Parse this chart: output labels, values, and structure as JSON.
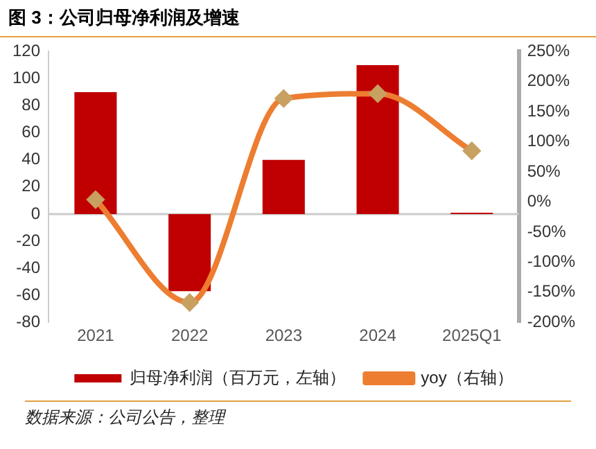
{
  "chart_data": {
    "type": "bar",
    "title": "图 3：公司归母净利润及增速",
    "categories": [
      "2021",
      "2022",
      "2023",
      "2024",
      "2025Q1"
    ],
    "series": [
      {
        "name": "归母净利润（百万元，左轴）",
        "color": "#c00000",
        "values": [
          90,
          -57,
          40,
          110,
          1
        ]
      },
      {
        "name": "yoy（右轴）",
        "type": "line",
        "axis": "y2",
        "color": "#ed7d31",
        "marker": "diamond",
        "values": [
          4,
          -167,
          172,
          180,
          85
        ]
      }
    ],
    "ylim": [
      -80,
      120
    ],
    "yticks": [
      -80,
      -60,
      -40,
      -20,
      0,
      20,
      40,
      60,
      80,
      100,
      120
    ],
    "y2lim": [
      -200,
      250
    ],
    "y2ticks": [
      {
        "value": -200,
        "label": "-200%"
      },
      {
        "value": -150,
        "label": "-150%"
      },
      {
        "value": -100,
        "label": "-100%"
      },
      {
        "value": -50,
        "label": "-50%"
      },
      {
        "value": 0,
        "label": "0%"
      },
      {
        "value": 50,
        "label": "50%"
      },
      {
        "value": 100,
        "label": "100%"
      },
      {
        "value": 150,
        "label": "150%"
      },
      {
        "value": 200,
        "label": "200%"
      },
      {
        "value": 250,
        "label": "250%"
      }
    ],
    "legend": "bottom",
    "annotations": [
      "数据来源：公司公告，整理"
    ]
  }
}
